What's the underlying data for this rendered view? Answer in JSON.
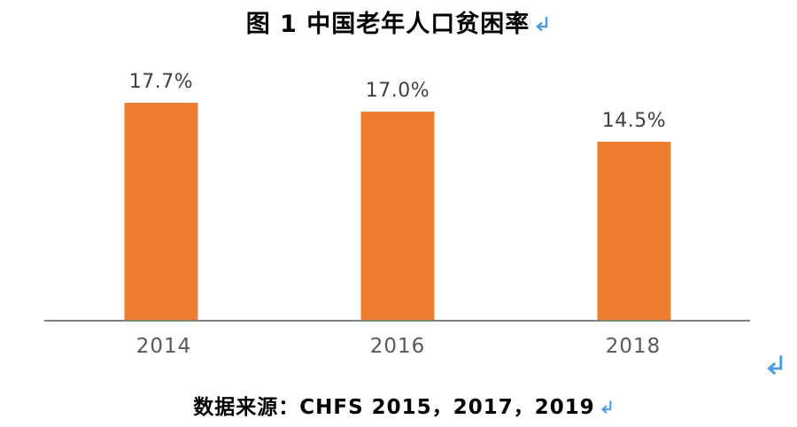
{
  "title": {
    "text": "图 1 中国老年人口贫困率"
  },
  "source": {
    "text": "数据来源：CHFS 2015，2017，2019"
  },
  "icons": {
    "paragraph_return": "↵"
  },
  "colors": {
    "background": "#FFFFFF",
    "bar": "#ED7D31",
    "axis": "#808080",
    "value_label": "#404040",
    "tick_label": "#595959",
    "title_text": "#000000",
    "return_mark": "#4D9CE0"
  },
  "chart_data": {
    "type": "bar",
    "title": "图 1 中国老年人口贫困率",
    "categories": [
      "2014",
      "2016",
      "2018"
    ],
    "values": [
      17.7,
      17.0,
      14.5
    ],
    "data_labels": [
      "17.7%",
      "17.0%",
      "14.5%"
    ],
    "unit": "percent",
    "xlabel": "",
    "ylabel": "",
    "ylim": [
      0,
      20
    ],
    "grid": false,
    "legend": false,
    "source_note": "数据来源：CHFS 2015，2017，2019"
  }
}
